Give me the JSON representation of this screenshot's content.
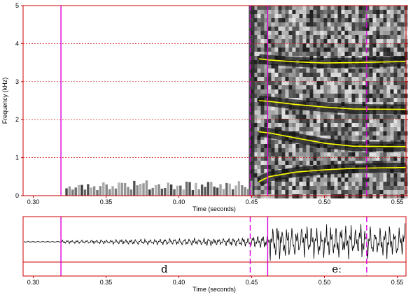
{
  "chart_data": [
    {
      "type": "spectrogram",
      "xlabel": "Time (seconds)",
      "ylabel": "Frequency (kHz)",
      "xlim": [
        0.293,
        0.556
      ],
      "ylim": [
        0,
        5
      ],
      "x_ticks": [
        "0.30",
        "0.35",
        "0.40",
        "0.45",
        "0.50",
        "0.55"
      ],
      "x_tick_values": [
        0.3,
        0.35,
        0.4,
        0.45,
        0.5,
        0.55
      ],
      "y_ticks": [
        "0",
        "1",
        "2",
        "3",
        "4",
        "5"
      ],
      "y_tick_values": [
        0,
        1,
        2,
        3,
        4,
        5
      ],
      "grid": "horizontal dotted red at each kHz",
      "segment_boundaries": [
        {
          "time": 0.319,
          "style": "solid"
        },
        {
          "time": 0.449,
          "style": "dashed"
        },
        {
          "time": 0.461,
          "style": "solid"
        },
        {
          "time": 0.529,
          "style": "dashed"
        }
      ],
      "formants": [
        {
          "x": [
            0.455,
            0.462,
            0.48,
            0.5,
            0.52,
            0.556
          ],
          "y": [
            0.37,
            0.5,
            0.62,
            0.68,
            0.72,
            0.74
          ]
        },
        {
          "x": [
            0.455,
            0.462,
            0.48,
            0.5,
            0.52,
            0.556
          ],
          "y": [
            1.68,
            1.65,
            1.52,
            1.38,
            1.3,
            1.29
          ]
        },
        {
          "x": [
            0.455,
            0.462,
            0.48,
            0.5,
            0.52,
            0.556
          ],
          "y": [
            2.5,
            2.48,
            2.4,
            2.33,
            2.28,
            2.27
          ]
        },
        {
          "x": [
            0.455,
            0.462,
            0.48,
            0.5,
            0.52,
            0.556
          ],
          "y": [
            3.6,
            3.57,
            3.52,
            3.49,
            3.5,
            3.53
          ]
        }
      ],
      "colors": {
        "frame": "#cc0000",
        "boundary": "#dd00dd",
        "formant": "#ffff00"
      }
    },
    {
      "type": "waveform",
      "xlabel": "Time (seconds)",
      "xlim": [
        0.293,
        0.556
      ],
      "x_ticks": [
        "0.30",
        "0.35",
        "0.40",
        "0.45",
        "0.50",
        "0.55"
      ],
      "x_tick_values": [
        0.3,
        0.35,
        0.4,
        0.45,
        0.5,
        0.55
      ],
      "segments": [
        {
          "label": "d",
          "start": 0.319,
          "end": 0.461
        },
        {
          "label": "eː",
          "start": 0.461,
          "end": 0.556
        }
      ]
    }
  ]
}
